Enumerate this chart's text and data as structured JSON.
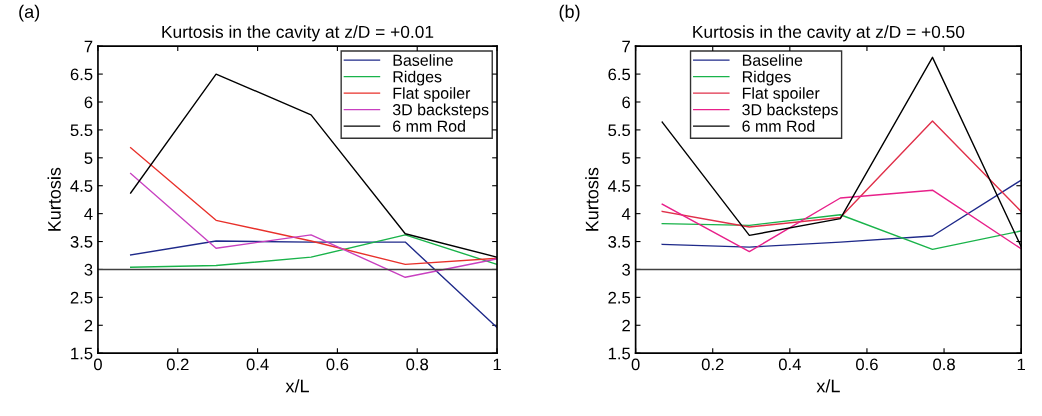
{
  "chart_data": [
    {
      "type": "line",
      "title": "Kurtosis in the cavity at z/D = +0.01",
      "xlabel": "x/L",
      "ylabel": "Kurtosis",
      "annotations": [
        "(a)"
      ],
      "x": [
        0.082,
        0.296,
        0.534,
        0.77,
        1.0
      ],
      "series": [
        {
          "name": "Baseline",
          "color": "#1f2a8a",
          "values": [
            3.26,
            3.51,
            3.49,
            3.49,
            1.96
          ]
        },
        {
          "name": "Ridges",
          "color": "#19b34a",
          "values": [
            3.04,
            3.07,
            3.22,
            3.62,
            3.09
          ]
        },
        {
          "name": "Flat spoiler",
          "color": "#e8302a",
          "values": [
            5.18,
            3.88,
            3.51,
            3.09,
            3.2
          ]
        },
        {
          "name": "3D backsteps",
          "color": "#c840c0",
          "values": [
            4.72,
            3.38,
            3.62,
            2.86,
            3.19
          ]
        },
        {
          "name": "6 mm Rod",
          "color": "#000000",
          "values": [
            4.37,
            6.5,
            5.77,
            3.64,
            3.22
          ]
        }
      ],
      "xlim": [
        0,
        1
      ],
      "xticks": [
        0,
        0.2,
        0.4,
        0.6,
        0.8,
        1
      ],
      "ylim": [
        1.5,
        7
      ],
      "yticks": [
        1.5,
        2,
        2.5,
        3,
        3.5,
        4,
        4.5,
        5,
        5.5,
        6,
        6.5,
        7
      ],
      "ref_lines": [
        {
          "axis": "y",
          "value": 3,
          "color": "#404040"
        }
      ],
      "legend": "top right",
      "grid": false,
      "marker": "none",
      "line_style": "solid"
    },
    {
      "type": "line",
      "title": "Kurtosis in the cavity at z/D = +0.50",
      "xlabel": "x/L",
      "ylabel": "Kurtosis",
      "annotations": [
        "(b)"
      ],
      "x": [
        0.069,
        0.295,
        0.531,
        0.77,
        1.0
      ],
      "series": [
        {
          "name": "Baseline",
          "color": "#1f2a8a",
          "values": [
            3.45,
            3.4,
            3.49,
            3.6,
            4.6
          ]
        },
        {
          "name": "Ridges",
          "color": "#19b34a",
          "values": [
            3.82,
            3.79,
            3.98,
            3.36,
            3.69
          ]
        },
        {
          "name": "Flat spoiler",
          "color": "#e0304a",
          "values": [
            4.04,
            3.76,
            3.93,
            5.66,
            4.04
          ]
        },
        {
          "name": "3D backsteps",
          "color": "#e8208a",
          "values": [
            4.17,
            3.32,
            4.28,
            4.42,
            3.37
          ]
        },
        {
          "name": "6 mm Rod",
          "color": "#000000",
          "values": [
            5.64,
            3.61,
            3.91,
            6.8,
            3.41
          ]
        }
      ],
      "xlim": [
        0,
        1
      ],
      "xticks": [
        0,
        0.2,
        0.4,
        0.6,
        0.8,
        1
      ],
      "ylim": [
        1.5,
        7
      ],
      "yticks": [
        1.5,
        2,
        2.5,
        3,
        3.5,
        4,
        4.5,
        5,
        5.5,
        6,
        6.5,
        7
      ],
      "ref_lines": [
        {
          "axis": "y",
          "value": 3,
          "color": "#404040"
        }
      ],
      "legend": "top left",
      "grid": false,
      "marker": "none",
      "line_style": "solid"
    }
  ]
}
